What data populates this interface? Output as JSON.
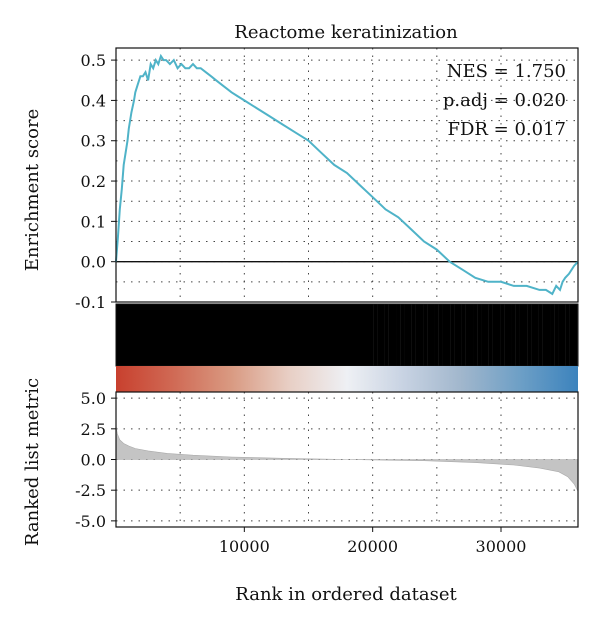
{
  "chart_data": {
    "type": "line",
    "title": "Reactome keratinization",
    "xlabel": "Rank in ordered dataset",
    "x_ticks": [
      10000,
      20000,
      30000
    ],
    "xlim": [
      0,
      36000
    ],
    "grid": true,
    "enrichment": {
      "ylabel": "Enrichment score",
      "ylim": [
        -0.1,
        0.53
      ],
      "y_ticks": [
        "0.5",
        "0.4",
        "0.3",
        "0.2",
        "0.1",
        "0.0",
        "-0.1"
      ],
      "line_color": "#4fb3c8",
      "x": [
        0,
        150,
        300,
        450,
        600,
        750,
        900,
        1000,
        1200,
        1400,
        1500,
        1700,
        1900,
        2100,
        2300,
        2500,
        2700,
        2900,
        3100,
        3300,
        3500,
        3700,
        3900,
        4200,
        4500,
        4800,
        5100,
        5400,
        5700,
        6000,
        6300,
        6600,
        7000,
        7400,
        7800,
        8200,
        8600,
        9000,
        9500,
        10000,
        11000,
        12000,
        13000,
        14000,
        15000,
        16000,
        17000,
        18000,
        19000,
        20000,
        21000,
        22000,
        23000,
        24000,
        25000,
        26000,
        27000,
        28000,
        29000,
        30000,
        31000,
        32000,
        33000,
        33500,
        34000,
        34300,
        34600,
        34800,
        35000,
        35300,
        35700,
        36000
      ],
      "y": [
        0.0,
        0.06,
        0.13,
        0.18,
        0.24,
        0.27,
        0.3,
        0.33,
        0.37,
        0.4,
        0.42,
        0.44,
        0.46,
        0.46,
        0.47,
        0.45,
        0.49,
        0.48,
        0.5,
        0.49,
        0.51,
        0.5,
        0.5,
        0.49,
        0.5,
        0.48,
        0.49,
        0.48,
        0.48,
        0.49,
        0.48,
        0.48,
        0.47,
        0.46,
        0.45,
        0.44,
        0.43,
        0.42,
        0.41,
        0.4,
        0.38,
        0.36,
        0.34,
        0.32,
        0.3,
        0.27,
        0.24,
        0.22,
        0.19,
        0.16,
        0.13,
        0.11,
        0.08,
        0.05,
        0.03,
        0.0,
        -0.02,
        -0.04,
        -0.05,
        -0.05,
        -0.06,
        -0.06,
        -0.07,
        -0.07,
        -0.08,
        -0.06,
        -0.07,
        -0.05,
        -0.04,
        -0.03,
        -0.01,
        0.0
      ]
    },
    "annotations": [
      "NES = 1.750",
      "p.adj = 0.020",
      "FDR = 0.017"
    ],
    "gene_hits": [
      120,
      180,
      260,
      330,
      420,
      500,
      560,
      650,
      720,
      800,
      880,
      950,
      1030,
      1120,
      1200,
      1280,
      1350,
      1450,
      1520,
      1600,
      1700,
      1780,
      1850,
      1950,
      2050,
      2150,
      2250,
      2350,
      2450,
      2550,
      2650,
      2750,
      2850,
      2950,
      3050,
      3150,
      3250,
      3350,
      3450,
      3550,
      3650,
      3750,
      3850,
      3950,
      4050,
      4150,
      4250,
      4350,
      4450,
      4550,
      4650,
      4750,
      4850,
      4950,
      5050,
      5200,
      5350,
      5500,
      5650,
      5800,
      5950,
      6100,
      6250,
      6400,
      6550,
      6700,
      6850,
      7000,
      7150,
      7300,
      7450,
      7600,
      7750,
      7900,
      8100,
      8300,
      8500,
      8700,
      8900,
      9100,
      9300,
      9500,
      9700,
      9900,
      10100,
      10300,
      10500,
      10700,
      10900,
      11100,
      11300,
      11500,
      11700,
      11900,
      12100,
      12300,
      12500,
      12700,
      12900,
      13100,
      13300,
      13500,
      13700,
      13900,
      14100,
      14300,
      14500,
      14700,
      14900,
      15100,
      15300,
      15500,
      15700,
      15900,
      16100,
      16300,
      16500,
      16700,
      16900,
      17100,
      17300,
      17500,
      17700,
      17900,
      18100,
      18300,
      18500,
      18700,
      18900,
      19100,
      19300,
      19500,
      19700,
      19900,
      20200,
      20500,
      20800,
      21100,
      21400,
      21700,
      22000,
      22300,
      22600,
      22900,
      23200,
      23500,
      23800,
      24100,
      24400,
      24700,
      25000,
      25300,
      25600,
      25900,
      26200,
      26500,
      26800,
      27100,
      27400,
      27700,
      28000,
      28300,
      28600,
      28900,
      29200,
      29500,
      29800,
      30100,
      30400,
      30700,
      31000,
      31300,
      31600,
      31900,
      32200,
      32500,
      32800,
      33100,
      33400,
      33700,
      34000,
      34300,
      34600,
      34900,
      35200,
      35500,
      35800
    ],
    "gradient_colors": [
      "#c8402e",
      "#d06a55",
      "#d99a82",
      "#e8cfc5",
      "#eef0f4",
      "#c7d2e2",
      "#a0b6cc",
      "#6d9fc6",
      "#3c83bd"
    ],
    "ranked": {
      "ylabel": "Ranked list metric",
      "ylim": [
        -5.5,
        5.5
      ],
      "y_ticks": [
        "5.0",
        "2.5",
        "0.0",
        "-2.5",
        "-5.0"
      ],
      "fill_color": "#c4c4c4",
      "x": [
        0,
        100,
        300,
        600,
        1000,
        1500,
        2500,
        4000,
        6000,
        9000,
        13000,
        18000,
        24000,
        28000,
        31000,
        33000,
        34500,
        35200,
        35700,
        36000
      ],
      "y": [
        2.8,
        2.1,
        1.6,
        1.3,
        1.1,
        0.9,
        0.7,
        0.5,
        0.35,
        0.2,
        0.1,
        0.0,
        -0.1,
        -0.25,
        -0.45,
        -0.7,
        -1.0,
        -1.4,
        -2.0,
        -2.6
      ]
    }
  }
}
